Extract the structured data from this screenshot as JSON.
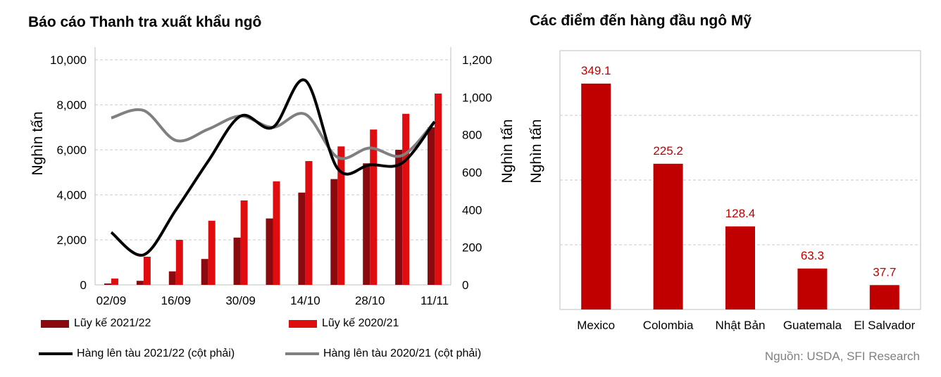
{
  "left_title": "Báo cáo Thanh tra xuất khẩu ngô",
  "right_title": "Các điểm đến hàng đầu ngô Mỹ",
  "source": "Nguồn: USDA, SFI Research",
  "colors": {
    "dark_red": "#8b0a0f",
    "red": "#e00d10",
    "bar_red": "#c00000",
    "black_line": "#000000",
    "gray_line": "#808080",
    "value_label": "#c00000"
  },
  "chart_data": [
    {
      "type": "bar",
      "title": "Báo cáo Thanh tra xuất khẩu ngô",
      "ylabel": "Nghìn tấn",
      "y2label": "Nghìn tấn",
      "ylim": [
        0,
        10000
      ],
      "y2lim": [
        0,
        1200
      ],
      "yticks": [
        "0",
        "2,000",
        "4,000",
        "6,000",
        "8,000",
        "10,000"
      ],
      "y2ticks": [
        "0",
        "200",
        "400",
        "600",
        "800",
        "1,000",
        "1,200"
      ],
      "x_tick_labels": [
        "02/09",
        "16/09",
        "30/09",
        "14/10",
        "28/10",
        "11/11"
      ],
      "x_tick_positions": [
        0,
        2,
        4,
        6,
        8,
        10
      ],
      "n_categories": 11,
      "grid": true,
      "series": [
        {
          "name": "Lũy kế 2021/22",
          "kind": "bar",
          "axis": "left",
          "values": [
            60,
            180,
            600,
            1150,
            2100,
            2950,
            4100,
            4700,
            5400,
            6000,
            7000
          ]
        },
        {
          "name": "Lũy kế 2020/21",
          "kind": "bar",
          "axis": "left",
          "values": [
            280,
            1250,
            2000,
            2850,
            3750,
            4600,
            5500,
            6150,
            6900,
            7600,
            8500
          ]
        },
        {
          "name": "Hàng lên tàu 2021/22 (cột phải)",
          "kind": "line",
          "axis": "right",
          "values": [
            280,
            160,
            400,
            660,
            900,
            840,
            1090,
            620,
            640,
            650,
            870
          ]
        },
        {
          "name": "Hàng lên tàu 2020/21 (cột phải)",
          "kind": "line",
          "axis": "right",
          "values": [
            890,
            930,
            770,
            830,
            900,
            840,
            910,
            680,
            730,
            690,
            870
          ]
        }
      ]
    },
    {
      "type": "bar",
      "title": "Các điểm đến hàng đầu ngô Mỹ",
      "ylabel": "Nghìn tấn",
      "ylim": [
        0,
        400
      ],
      "grid": true,
      "categories": [
        "Mexico",
        "Colombia",
        "Nhật Bản",
        "Guatemala",
        "El Salvador"
      ],
      "values": [
        349.1,
        225.2,
        128.4,
        63.3,
        37.7
      ],
      "value_labels": [
        "349.1",
        "225.2",
        "128.4",
        "63.3",
        "37.7"
      ]
    }
  ]
}
